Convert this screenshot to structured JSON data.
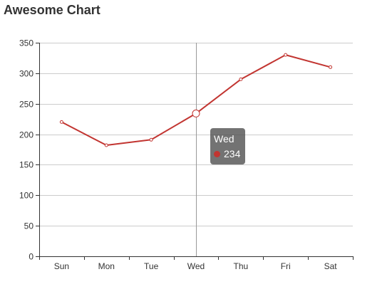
{
  "chart_data": {
    "type": "line",
    "title": "Awesome Chart",
    "categories": [
      "Sun",
      "Mon",
      "Tue",
      "Wed",
      "Thu",
      "Fri",
      "Sat"
    ],
    "values": [
      220,
      182,
      191,
      234,
      290,
      330,
      310
    ],
    "ylim": [
      0,
      350
    ],
    "yticks": [
      "0",
      "50",
      "100",
      "150",
      "200",
      "250",
      "300",
      "350"
    ],
    "grid": true,
    "series_color": "#c23531",
    "highlighted": {
      "category": "Wed",
      "value": "234"
    }
  }
}
